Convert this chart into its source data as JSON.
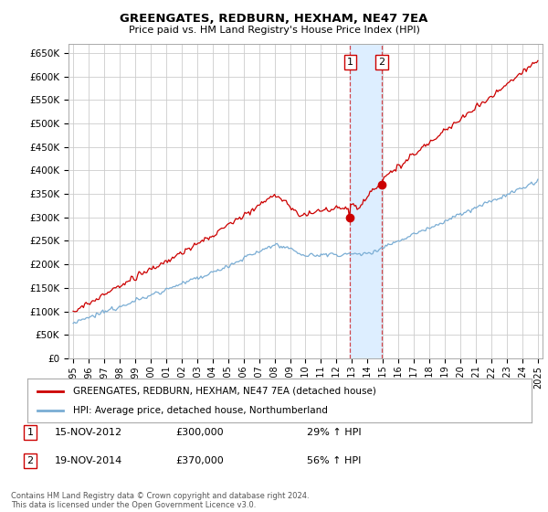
{
  "title": "GREENGATES, REDBURN, HEXHAM, NE47 7EA",
  "subtitle": "Price paid vs. HM Land Registry's House Price Index (HPI)",
  "ylabel_ticks": [
    "£0",
    "£50K",
    "£100K",
    "£150K",
    "£200K",
    "£250K",
    "£300K",
    "£350K",
    "£400K",
    "£450K",
    "£500K",
    "£550K",
    "£600K",
    "£650K"
  ],
  "ytick_vals": [
    0,
    50000,
    100000,
    150000,
    200000,
    250000,
    300000,
    350000,
    400000,
    450000,
    500000,
    550000,
    600000,
    650000
  ],
  "ylim_top": 670000,
  "xlim_start": 1994.7,
  "xlim_end": 2025.3,
  "sale1_year": 2012.875,
  "sale1_price": 300000,
  "sale2_year": 2014.92,
  "sale2_price": 370000,
  "red_line_color": "#cc0000",
  "blue_line_color": "#7aadd4",
  "highlight_fill": "#ddeeff",
  "grid_color": "#cccccc",
  "background_color": "#ffffff",
  "legend_label_red": "GREENGATES, REDBURN, HEXHAM, NE47 7EA (detached house)",
  "legend_label_blue": "HPI: Average price, detached house, Northumberland",
  "footnote": "Contains HM Land Registry data © Crown copyright and database right 2024.\nThis data is licensed under the Open Government Licence v3.0.",
  "table_rows": [
    {
      "num": "1",
      "date": "15-NOV-2012",
      "price": "£300,000",
      "hpi": "29% ↑ HPI"
    },
    {
      "num": "2",
      "date": "19-NOV-2014",
      "price": "£370,000",
      "hpi": "56% ↑ HPI"
    }
  ]
}
